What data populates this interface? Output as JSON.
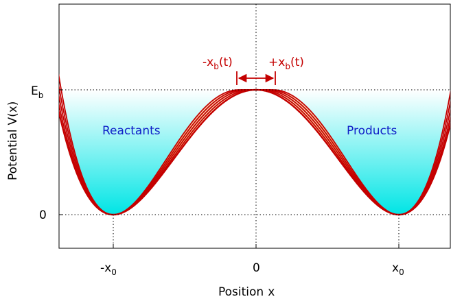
{
  "labels": {
    "y_axis": "Potential",
    "y_axis_fn": "V(x)",
    "x_axis": "Position",
    "x_axis_var": "x",
    "reactants": "Reactants",
    "products": "Products",
    "minus_sign": "-",
    "plus_sign": "+",
    "x_sym": "x",
    "b_sub": "b",
    "t_arg": "(t)",
    "E_sym": "E",
    "zero_sub": "0"
  },
  "ticks": {
    "x_zero": "0",
    "y_zero": "0"
  },
  "colors": {
    "curve": "#c40000",
    "well_fill_top": "#ffffff",
    "well_fill_bottom": "#00e5e5",
    "barrier_fill_light": "#fde3c8",
    "barrier_fill_dark": "#f5a23c",
    "region_text": "#1020c8"
  },
  "model": {
    "description_key": "double-well",
    "x0": 1,
    "Eb": 1,
    "barrier_offsets": [
      0,
      0.03,
      0.06,
      0.09,
      0.12
    ]
  }
}
